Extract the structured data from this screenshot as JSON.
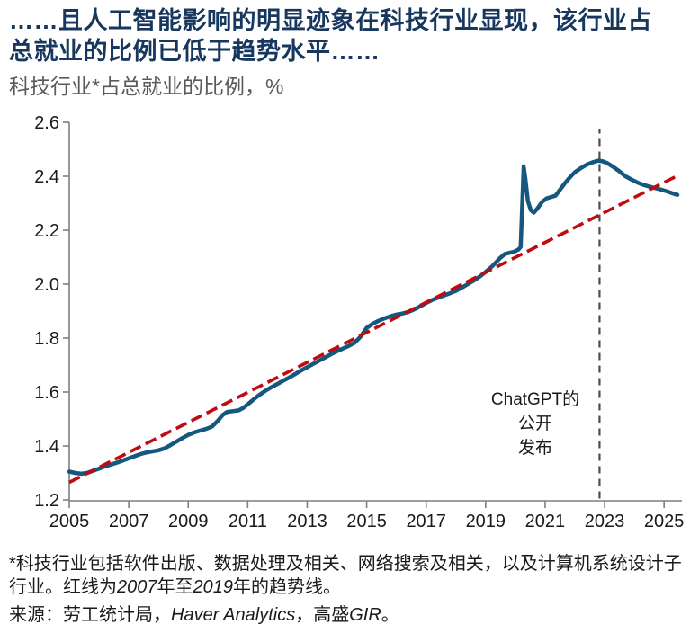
{
  "page": {
    "title_lines": [
      "……且人工智能影响的明显迹象在科技行业显现，该行业占",
      "总就业的比例已低于趋势水平……"
    ],
    "subtitle": "科技行业*占总就业的比例，%"
  },
  "chart_data": {
    "type": "line",
    "title": "科技行业*占总就业的比例，%",
    "xlabel": "",
    "ylabel": "%",
    "grid": false,
    "legend": "none",
    "xlim": [
      2005,
      2025.6
    ],
    "ylim": [
      1.2,
      2.6
    ],
    "x_ticks": [
      2005,
      2007,
      2009,
      2011,
      2013,
      2015,
      2017,
      2019,
      2021,
      2023,
      2025
    ],
    "y_ticks": [
      1.2,
      1.4,
      1.6,
      1.8,
      2.0,
      2.2,
      2.4,
      2.6
    ],
    "series": [
      {
        "name": "科技行业占总就业的比例",
        "color": "#14577F",
        "style": "solid",
        "width": 4.5,
        "points": [
          [
            2005.0,
            1.305
          ],
          [
            2005.2,
            1.3
          ],
          [
            2005.4,
            1.297
          ],
          [
            2005.6,
            1.3
          ],
          [
            2005.8,
            1.308
          ],
          [
            2006.0,
            1.316
          ],
          [
            2006.2,
            1.324
          ],
          [
            2006.4,
            1.331
          ],
          [
            2006.6,
            1.338
          ],
          [
            2006.8,
            1.346
          ],
          [
            2007.0,
            1.354
          ],
          [
            2007.2,
            1.362
          ],
          [
            2007.4,
            1.37
          ],
          [
            2007.6,
            1.376
          ],
          [
            2007.8,
            1.38
          ],
          [
            2008.0,
            1.384
          ],
          [
            2008.2,
            1.391
          ],
          [
            2008.4,
            1.403
          ],
          [
            2008.6,
            1.416
          ],
          [
            2008.8,
            1.429
          ],
          [
            2009.0,
            1.441
          ],
          [
            2009.2,
            1.45
          ],
          [
            2009.4,
            1.457
          ],
          [
            2009.6,
            1.463
          ],
          [
            2009.8,
            1.472
          ],
          [
            2010.0,
            1.494
          ],
          [
            2010.15,
            1.514
          ],
          [
            2010.3,
            1.526
          ],
          [
            2010.5,
            1.529
          ],
          [
            2010.7,
            1.532
          ],
          [
            2010.85,
            1.541
          ],
          [
            2011.0,
            1.554
          ],
          [
            2011.2,
            1.573
          ],
          [
            2011.4,
            1.59
          ],
          [
            2011.6,
            1.605
          ],
          [
            2011.8,
            1.618
          ],
          [
            2012.0,
            1.63
          ],
          [
            2012.2,
            1.642
          ],
          [
            2012.4,
            1.654
          ],
          [
            2012.6,
            1.667
          ],
          [
            2012.8,
            1.68
          ],
          [
            2013.0,
            1.692
          ],
          [
            2013.2,
            1.704
          ],
          [
            2013.4,
            1.716
          ],
          [
            2013.6,
            1.728
          ],
          [
            2013.8,
            1.74
          ],
          [
            2014.0,
            1.751
          ],
          [
            2014.2,
            1.761
          ],
          [
            2014.4,
            1.771
          ],
          [
            2014.6,
            1.783
          ],
          [
            2014.8,
            1.806
          ],
          [
            2015.0,
            1.838
          ],
          [
            2015.2,
            1.853
          ],
          [
            2015.4,
            1.864
          ],
          [
            2015.6,
            1.873
          ],
          [
            2015.8,
            1.881
          ],
          [
            2016.0,
            1.887
          ],
          [
            2016.2,
            1.891
          ],
          [
            2016.4,
            1.897
          ],
          [
            2016.6,
            1.906
          ],
          [
            2016.8,
            1.918
          ],
          [
            2017.0,
            1.93
          ],
          [
            2017.2,
            1.941
          ],
          [
            2017.4,
            1.95
          ],
          [
            2017.6,
            1.958
          ],
          [
            2017.8,
            1.966
          ],
          [
            2018.0,
            1.975
          ],
          [
            2018.2,
            1.987
          ],
          [
            2018.4,
            2.0
          ],
          [
            2018.6,
            2.013
          ],
          [
            2018.8,
            2.028
          ],
          [
            2019.0,
            2.045
          ],
          [
            2019.2,
            2.064
          ],
          [
            2019.35,
            2.081
          ],
          [
            2019.5,
            2.098
          ],
          [
            2019.65,
            2.112
          ],
          [
            2019.8,
            2.116
          ],
          [
            2019.95,
            2.12
          ],
          [
            2020.1,
            2.128
          ],
          [
            2020.18,
            2.138
          ],
          [
            2020.24,
            2.32
          ],
          [
            2020.28,
            2.437
          ],
          [
            2020.34,
            2.388
          ],
          [
            2020.42,
            2.308
          ],
          [
            2020.52,
            2.274
          ],
          [
            2020.62,
            2.265
          ],
          [
            2020.75,
            2.282
          ],
          [
            2020.9,
            2.305
          ],
          [
            2021.05,
            2.318
          ],
          [
            2021.2,
            2.323
          ],
          [
            2021.35,
            2.328
          ],
          [
            2021.5,
            2.35
          ],
          [
            2021.65,
            2.372
          ],
          [
            2021.8,
            2.392
          ],
          [
            2022.0,
            2.415
          ],
          [
            2022.2,
            2.43
          ],
          [
            2022.4,
            2.443
          ],
          [
            2022.6,
            2.452
          ],
          [
            2022.8,
            2.458
          ],
          [
            2022.95,
            2.455
          ],
          [
            2023.1,
            2.448
          ],
          [
            2023.3,
            2.434
          ],
          [
            2023.5,
            2.418
          ],
          [
            2023.7,
            2.4
          ],
          [
            2023.9,
            2.388
          ],
          [
            2024.1,
            2.377
          ],
          [
            2024.3,
            2.368
          ],
          [
            2024.5,
            2.362
          ],
          [
            2024.7,
            2.356
          ],
          [
            2024.85,
            2.352
          ],
          [
            2025.0,
            2.347
          ],
          [
            2025.15,
            2.342
          ],
          [
            2025.3,
            2.336
          ],
          [
            2025.45,
            2.331
          ]
        ]
      },
      {
        "name": "趋势线（2007年至2019年）",
        "color": "#C00A10",
        "style": "dashed",
        "width": 3.6,
        "points": [
          [
            2005.0,
            1.265
          ],
          [
            2025.45,
            2.402
          ]
        ]
      }
    ],
    "vline": {
      "x": 2022.83,
      "y_from": 1.205,
      "y_to": 2.575,
      "color": "#4d4d4d"
    },
    "annotation": {
      "x": 2020.67,
      "value": 1.553,
      "lines": [
        "ChatGPT的",
        "公开",
        "发布"
      ]
    }
  },
  "footer": {
    "note_parts": [
      {
        "t": "*科技行业包括软件出版、数据处理及相关、网络搜索及相关，以及计算机系统设计子行业。红线为",
        "i": false
      },
      {
        "t": "2007",
        "i": true
      },
      {
        "t": "年至",
        "i": false
      },
      {
        "t": "2019",
        "i": true
      },
      {
        "t": "年的趋势线。",
        "i": false
      }
    ],
    "source_parts": [
      {
        "t": "来源：劳工统计局，",
        "i": false
      },
      {
        "t": "Haver Analytics",
        "i": true
      },
      {
        "t": "，高盛",
        "i": false
      },
      {
        "t": "GIR",
        "i": true
      },
      {
        "t": "。",
        "i": false
      }
    ]
  }
}
